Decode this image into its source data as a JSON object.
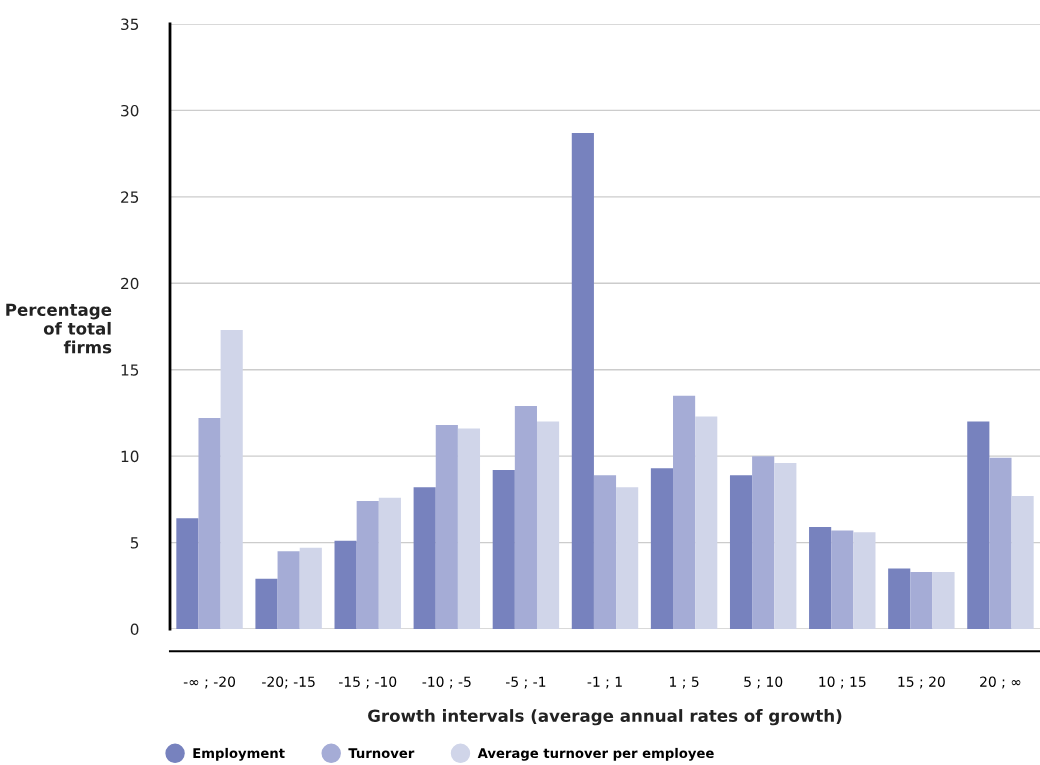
{
  "chart_data": {
    "type": "bar",
    "categories": [
      "-∞ ; -20",
      "-20; -15",
      "-15 ; -10",
      "-10 ; -5",
      "-5 ; -1",
      "-1 ; 1",
      "1 ; 5",
      "5 ; 10",
      "10 ; 15",
      "15 ; 20",
      "20 ; ∞"
    ],
    "series": [
      {
        "name": "Employment",
        "color": "#7782be",
        "values": [
          6.4,
          2.9,
          5.1,
          8.2,
          9.2,
          28.7,
          9.3,
          8.9,
          5.9,
          3.5,
          12.0
        ]
      },
      {
        "name": "Turnover",
        "color": "#a5acd6",
        "values": [
          12.2,
          4.5,
          7.4,
          11.8,
          12.9,
          8.9,
          13.5,
          10.0,
          5.7,
          3.3,
          9.9
        ]
      },
      {
        "name": "Average turnover per employee",
        "color": "#d0d5e9",
        "values": [
          17.3,
          4.7,
          7.6,
          11.6,
          12.0,
          8.2,
          12.3,
          9.6,
          5.6,
          3.3,
          7.7
        ]
      }
    ],
    "xlabel": "Growth intervals (average annual rates of growth)",
    "ylabel": "Percentage\nof total\nfirms",
    "ylim": [
      0,
      35
    ],
    "yticks": [
      0,
      5,
      10,
      15,
      20,
      25,
      30,
      35
    ],
    "grid": "y",
    "legend": "bottom"
  }
}
